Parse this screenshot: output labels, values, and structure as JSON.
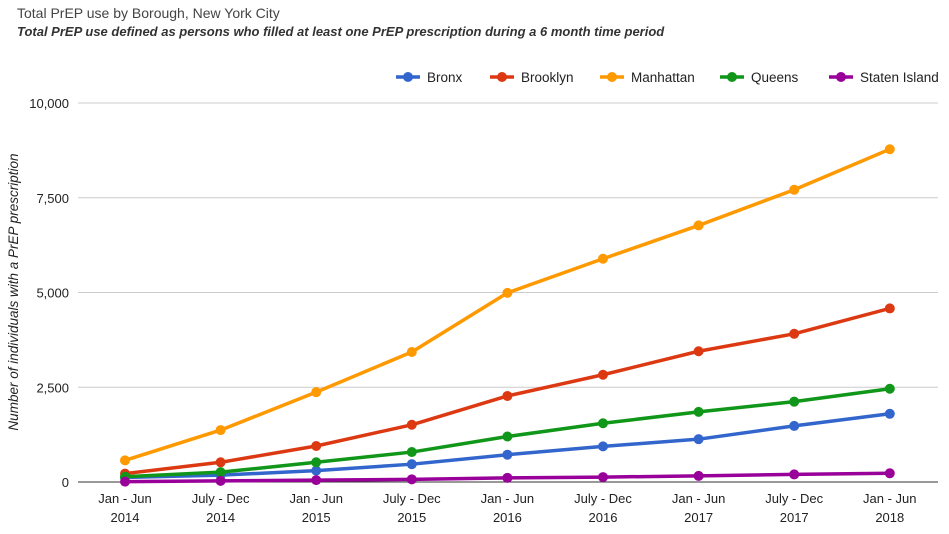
{
  "chart_data": {
    "type": "line",
    "title": "Total PrEP use by Borough, New York City",
    "subtitle": "Total PrEP use defined as persons who filled at least one PrEP prescription during a 6 month time period",
    "xlabel": "",
    "ylabel": "Number of individuals with a PrEP prescription",
    "ylim": [
      0,
      10000
    ],
    "yticks": [
      0,
      2500,
      5000,
      7500,
      10000
    ],
    "ytick_labels": [
      "0",
      "2,500",
      "5,000",
      "7,500",
      "10,000"
    ],
    "grid": true,
    "legend_position": "top-right",
    "categories": [
      [
        "Jan - Jun",
        "2014"
      ],
      [
        "July - Dec",
        "2014"
      ],
      [
        "Jan - Jun",
        "2015"
      ],
      [
        "July - Dec",
        "2015"
      ],
      [
        "Jan - Jun",
        "2016"
      ],
      [
        "July - Dec",
        "2016"
      ],
      [
        "Jan - Jun",
        "2017"
      ],
      [
        "July - Dec",
        "2017"
      ],
      [
        "Jan - Jun",
        "2018"
      ]
    ],
    "series": [
      {
        "name": "Bronx",
        "color": "#3366cc",
        "values": [
          120,
          180,
          300,
          470,
          720,
          940,
          1130,
          1480,
          1800
        ]
      },
      {
        "name": "Brooklyn",
        "color": "#dc3912",
        "values": [
          220,
          520,
          950,
          1510,
          2270,
          2830,
          3450,
          3910,
          4580
        ]
      },
      {
        "name": "Manhattan",
        "color": "#ff9900",
        "values": [
          570,
          1370,
          2370,
          3430,
          4990,
          5890,
          6770,
          7710,
          8780
        ]
      },
      {
        "name": "Queens",
        "color": "#109618",
        "values": [
          140,
          260,
          520,
          790,
          1200,
          1550,
          1850,
          2120,
          2460
        ]
      },
      {
        "name": "Staten Island",
        "color": "#990099",
        "values": [
          10,
          30,
          50,
          70,
          110,
          130,
          160,
          200,
          230
        ]
      }
    ]
  }
}
